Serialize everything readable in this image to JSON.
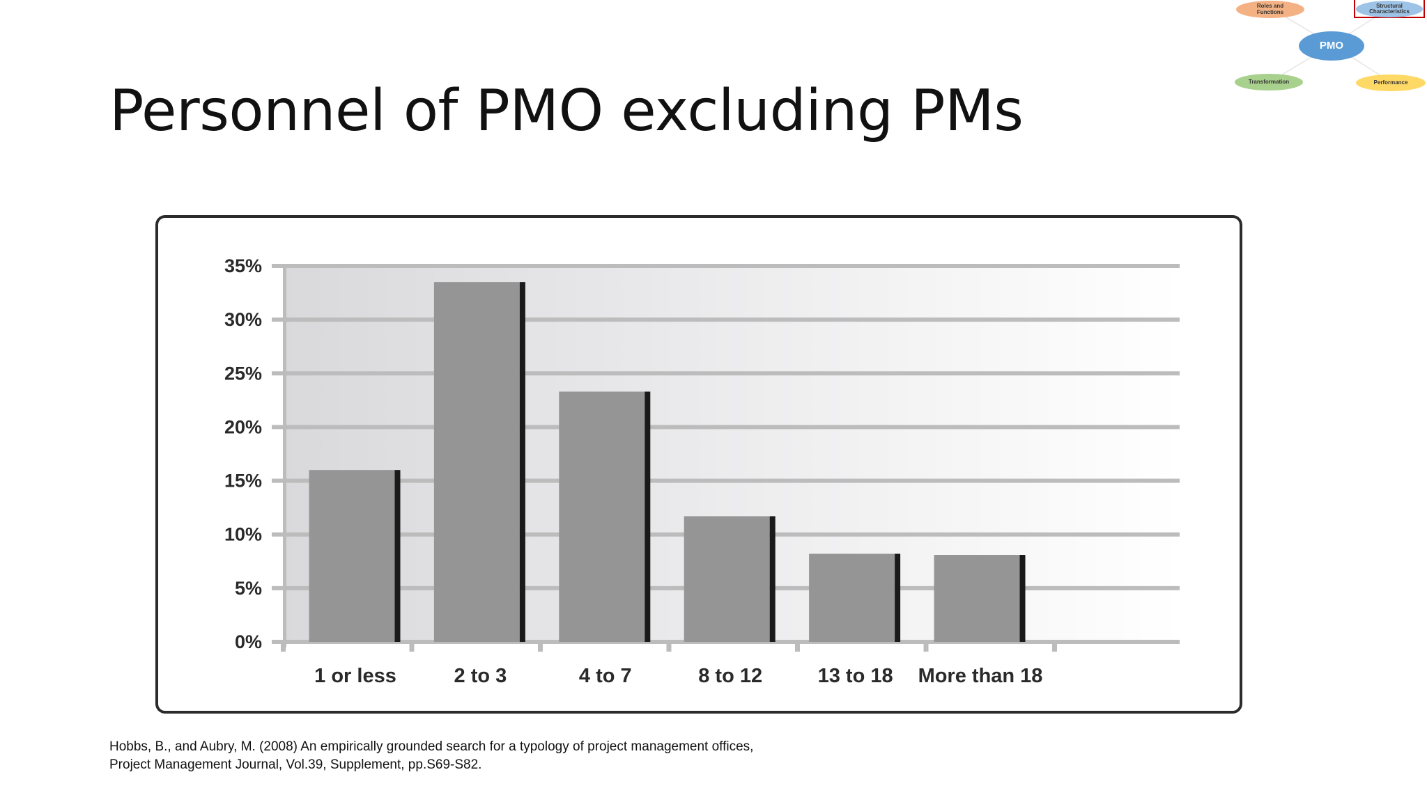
{
  "slide": {
    "title": "Personnel of PMO excluding PMs",
    "citation_line1": "Hobbs, B., and Aubry, M. (2008) An empirically grounded search for a typology of project management offices,",
    "citation_line2": "Project Management Journal, Vol.39, Supplement, pp.S69-S82."
  },
  "nav_map": {
    "center": "PMO",
    "nodes": {
      "roles": "Roles and Functions",
      "structural": "Structural Characteristics",
      "transformation": "Transformation",
      "performance": "Performance"
    },
    "active": "structural",
    "colors": {
      "center": "#5b9bd5",
      "roles": "#f4b183",
      "structural": "#9dc3e6",
      "transformation": "#a9d18e",
      "performance": "#ffd966",
      "active_border": "#c00000"
    }
  },
  "chart_data": {
    "type": "bar",
    "categories": [
      "1 or less",
      "2 to 3",
      "4 to 7",
      "8 to 12",
      "13 to 18",
      "More than 18"
    ],
    "series": [
      {
        "values": [
          16,
          33.5,
          23.3,
          11.7,
          8.2,
          8.1
        ]
      }
    ],
    "yticks": [
      "0%",
      "5%",
      "10%",
      "15%",
      "20%",
      "25%",
      "30%",
      "35%"
    ],
    "ylim": [
      0,
      35
    ],
    "grid": true,
    "colors": {
      "bar": "#959595",
      "bar_shadow": "#1a1a1a",
      "grid": "#bcbcbc"
    }
  }
}
